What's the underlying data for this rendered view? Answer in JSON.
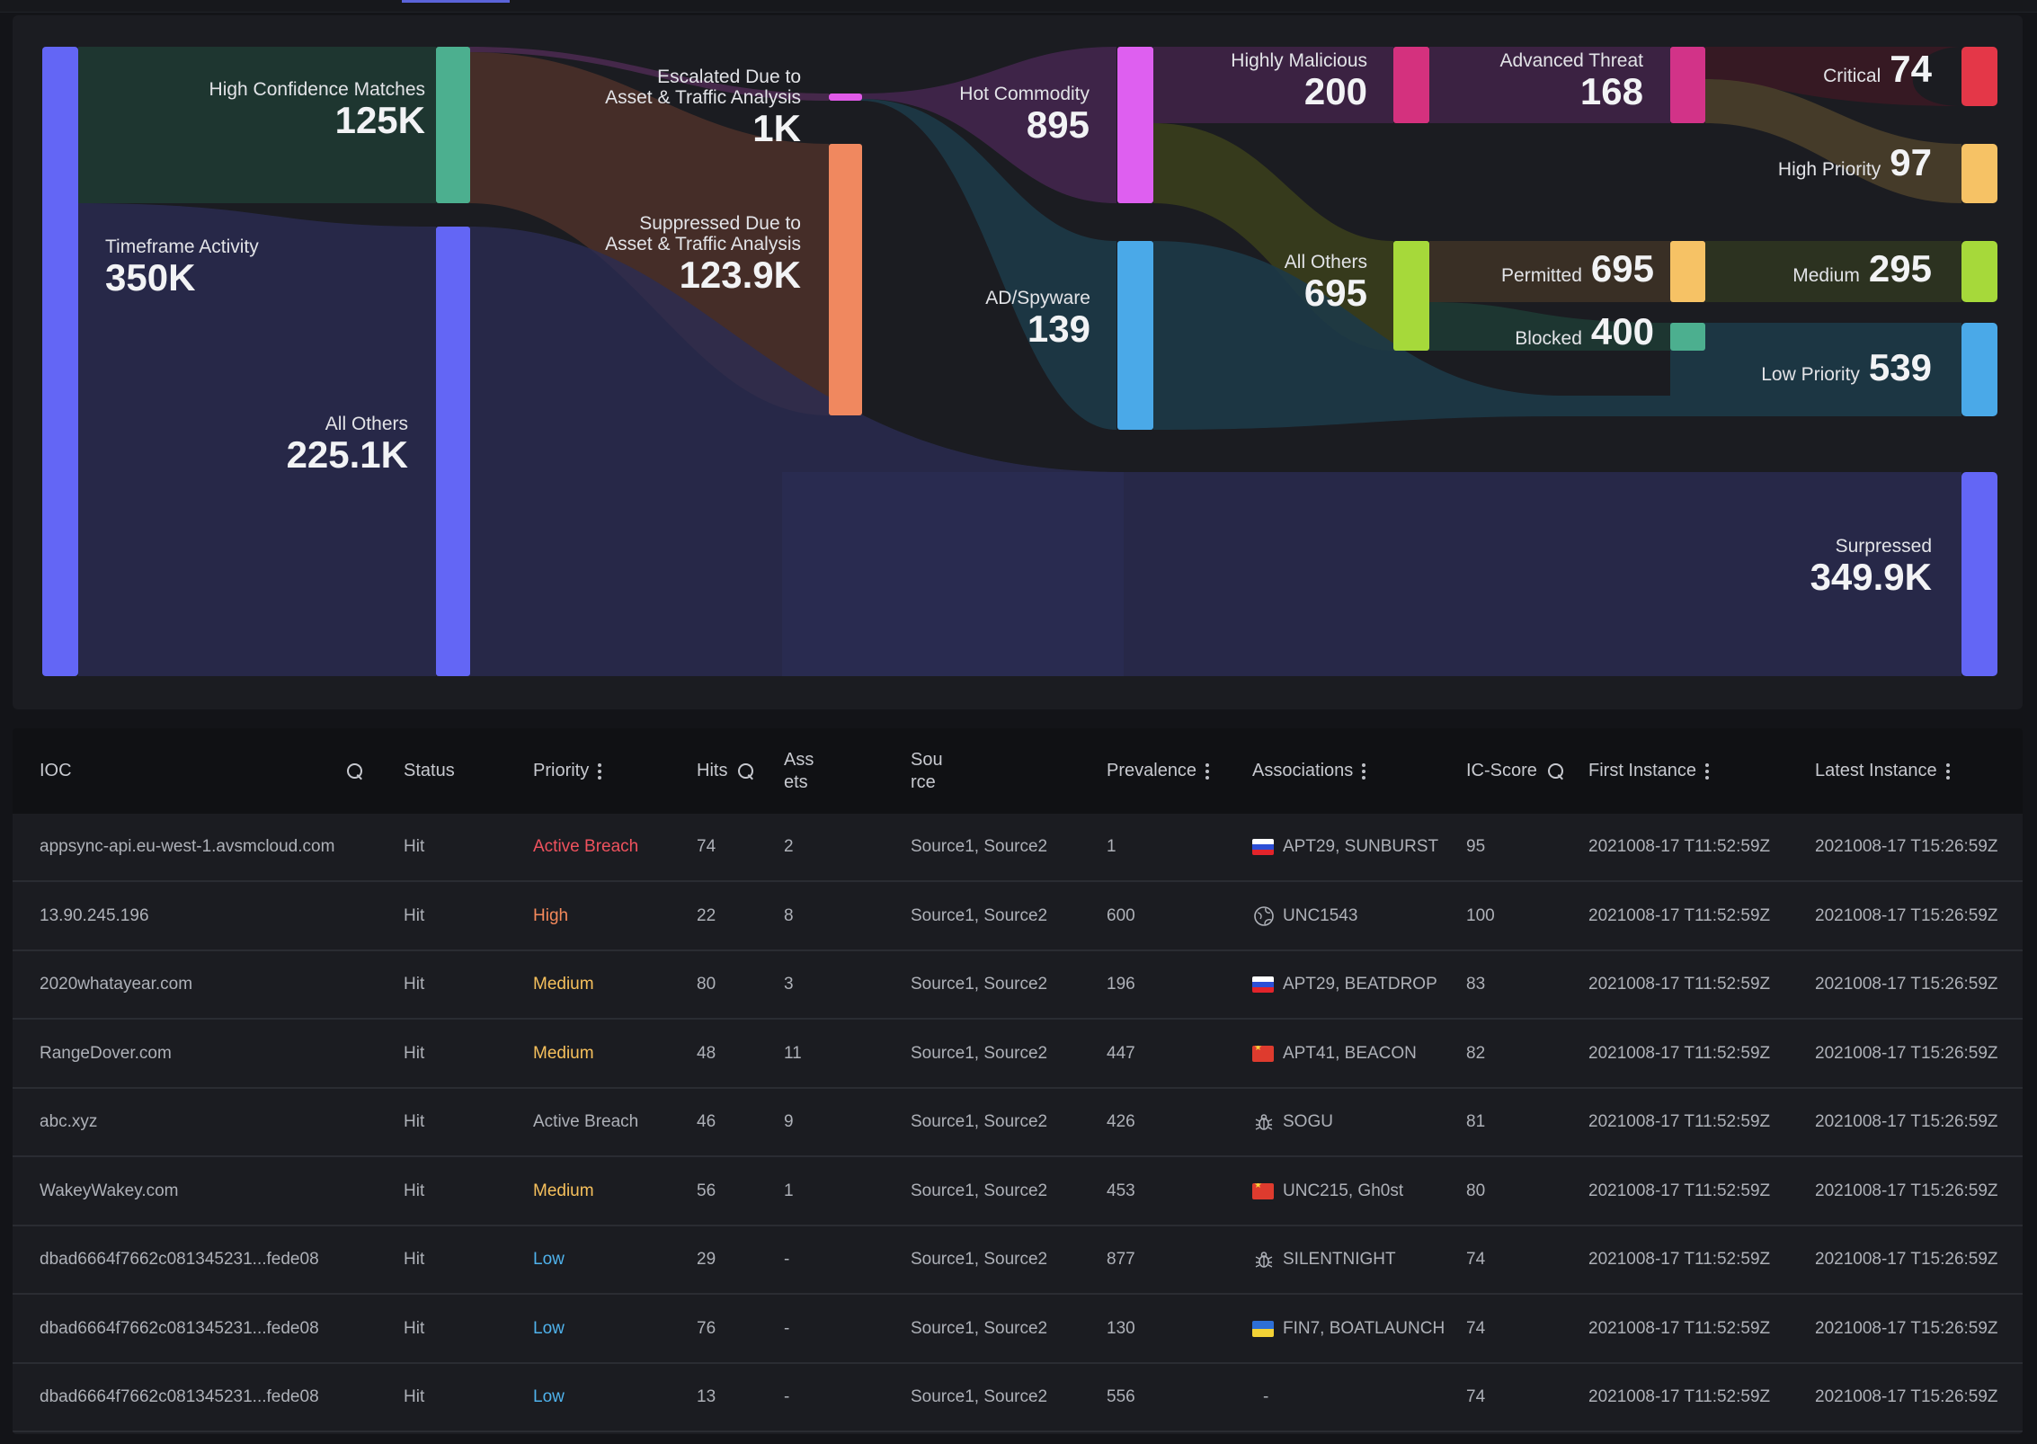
{
  "sankey": {
    "nodes": {
      "timeframe": {
        "label": "Timeframe Activity",
        "value": "350K",
        "color": "#6366f5"
      },
      "high_conf": {
        "label": "High Confidence Matches",
        "value": "125K",
        "color": "#4caf8f"
      },
      "all_others_1": {
        "label": "All Others",
        "value": "225.1K",
        "color": "#6366f5"
      },
      "escalated": {
        "label_line1": "Escalated Due to",
        "label_line2": "Asset & Traffic Analysis",
        "value": "1K",
        "color": "#e05ae8"
      },
      "suppressed_due": {
        "label_line1": "Suppressed Due to",
        "label_line2": "Asset & Traffic Analysis",
        "value": "123.9K",
        "color": "#f0885f"
      },
      "hot_commodity": {
        "label": "Hot Commodity",
        "value": "895",
        "color": "#de5ff0"
      },
      "ad_spyware": {
        "label": "AD/Spyware",
        "value": "139",
        "color": "#4aa9e8"
      },
      "highly_malicious": {
        "label": "Highly Malicious",
        "value": "200",
        "color": "#d4317e"
      },
      "all_others_2": {
        "label": "All Others",
        "value": "695",
        "color": "#a6d93a"
      },
      "advanced_threat": {
        "label": "Advanced Threat",
        "value": "168",
        "color": "#d23388"
      },
      "permitted": {
        "label": "Permitted",
        "value": "695",
        "color": "#f6c265"
      },
      "blocked": {
        "label": "Blocked",
        "value": "400",
        "color": "#4caf8f"
      },
      "critical": {
        "label": "Critical",
        "value": "74",
        "color": "#e43748"
      },
      "high_priority": {
        "label": "High Priority",
        "value": "97",
        "color": "#f6c265"
      },
      "medium": {
        "label": "Medium",
        "value": "295",
        "color": "#a6d93a"
      },
      "low_priority": {
        "label": "Low Priority",
        "value": "539",
        "color": "#4aa9e8"
      },
      "suppressed": {
        "label": "Surpressed",
        "value": "349.9K",
        "color": "#6366f5"
      }
    }
  },
  "table": {
    "headers": {
      "ioc": "IOC",
      "status": "Status",
      "priority": "Priority",
      "hits": "Hits",
      "assets_1": "Ass",
      "assets_2": "ets",
      "source_1": "Sou",
      "source_2": "rce",
      "prevalence": "Prevalence",
      "associations": "Associations",
      "ic_score": "IC-Score",
      "first_instance": "First Instance",
      "latest_instance": "Latest Instance"
    },
    "rows": [
      {
        "ioc": "appsync-api.eu-west-1.avsmcloud.com",
        "status": "Hit",
        "priority": "Active Breach",
        "priority_class": "pri-active",
        "hits": "74",
        "assets": "2",
        "source": "Source1, Source2",
        "prevalence": "1",
        "assoc_icon": "flag-ru",
        "associations": "APT29, SUNBURST",
        "ic_score": "95",
        "first": "2021008-17 T11:52:59Z",
        "latest": "2021008-17 T15:26:59Z"
      },
      {
        "ioc": "13.90.245.196",
        "status": "Hit",
        "priority": "High",
        "priority_class": "pri-high",
        "hits": "22",
        "assets": "8",
        "source": "Source1, Source2",
        "prevalence": "600",
        "assoc_icon": "globe-icon",
        "associations": "UNC1543",
        "ic_score": "100",
        "first": "2021008-17 T11:52:59Z",
        "latest": "2021008-17 T15:26:59Z"
      },
      {
        "ioc": "2020whatayear.com",
        "status": "Hit",
        "priority": "Medium",
        "priority_class": "pri-medium",
        "hits": "80",
        "assets": "3",
        "source": "Source1, Source2",
        "prevalence": "196",
        "assoc_icon": "flag-ru",
        "associations": "APT29, BEATDROP",
        "ic_score": "83",
        "first": "2021008-17 T11:52:59Z",
        "latest": "2021008-17 T15:26:59Z"
      },
      {
        "ioc": "RangeDover.com",
        "status": "Hit",
        "priority": "Medium",
        "priority_class": "pri-medium",
        "hits": "48",
        "assets": "11",
        "source": "Source1, Source2",
        "prevalence": "447",
        "assoc_icon": "flag-cn",
        "associations": "APT41, BEACON",
        "ic_score": "82",
        "first": "2021008-17 T11:52:59Z",
        "latest": "2021008-17 T15:26:59Z"
      },
      {
        "ioc": "abc.xyz",
        "status": "Hit",
        "priority": "Active Breach",
        "priority_class": "pri-plain",
        "hits": "46",
        "assets": "9",
        "source": "Source1, Source2",
        "prevalence": "426",
        "assoc_icon": "bug-icon",
        "associations": "SOGU",
        "ic_score": "81",
        "first": "2021008-17 T11:52:59Z",
        "latest": "2021008-17 T15:26:59Z"
      },
      {
        "ioc": "WakeyWakey.com",
        "status": "Hit",
        "priority": "Medium",
        "priority_class": "pri-medium",
        "hits": "56",
        "assets": "1",
        "source": "Source1, Source2",
        "prevalence": "453",
        "assoc_icon": "flag-cn",
        "associations": "UNC215, Gh0st",
        "ic_score": "80",
        "first": "2021008-17 T11:52:59Z",
        "latest": "2021008-17 T15:26:59Z"
      },
      {
        "ioc": "dbad6664f7662c081345231...fede08",
        "status": "Hit",
        "priority": "Low",
        "priority_class": "pri-low",
        "hits": "29",
        "assets": "-",
        "source": "Source1, Source2",
        "prevalence": "877",
        "assoc_icon": "bug-icon",
        "associations": "SILENTNIGHT",
        "ic_score": "74",
        "first": "2021008-17 T11:52:59Z",
        "latest": "2021008-17 T15:26:59Z"
      },
      {
        "ioc": "dbad6664f7662c081345231...fede08",
        "status": "Hit",
        "priority": "Low",
        "priority_class": "pri-low",
        "hits": "76",
        "assets": "-",
        "source": "Source1, Source2",
        "prevalence": "130",
        "assoc_icon": "flag-ua",
        "associations": "FIN7, BOATLAUNCH",
        "ic_score": "74",
        "first": "2021008-17 T11:52:59Z",
        "latest": "2021008-17 T15:26:59Z"
      },
      {
        "ioc": "dbad6664f7662c081345231...fede08",
        "status": "Hit",
        "priority": "Low",
        "priority_class": "pri-low",
        "hits": "13",
        "assets": "-",
        "source": "Source1, Source2",
        "prevalence": "556",
        "assoc_icon": "none",
        "associations": "-",
        "ic_score": "74",
        "first": "2021008-17 T11:52:59Z",
        "latest": "2021008-17 T15:26:59Z"
      }
    ]
  }
}
